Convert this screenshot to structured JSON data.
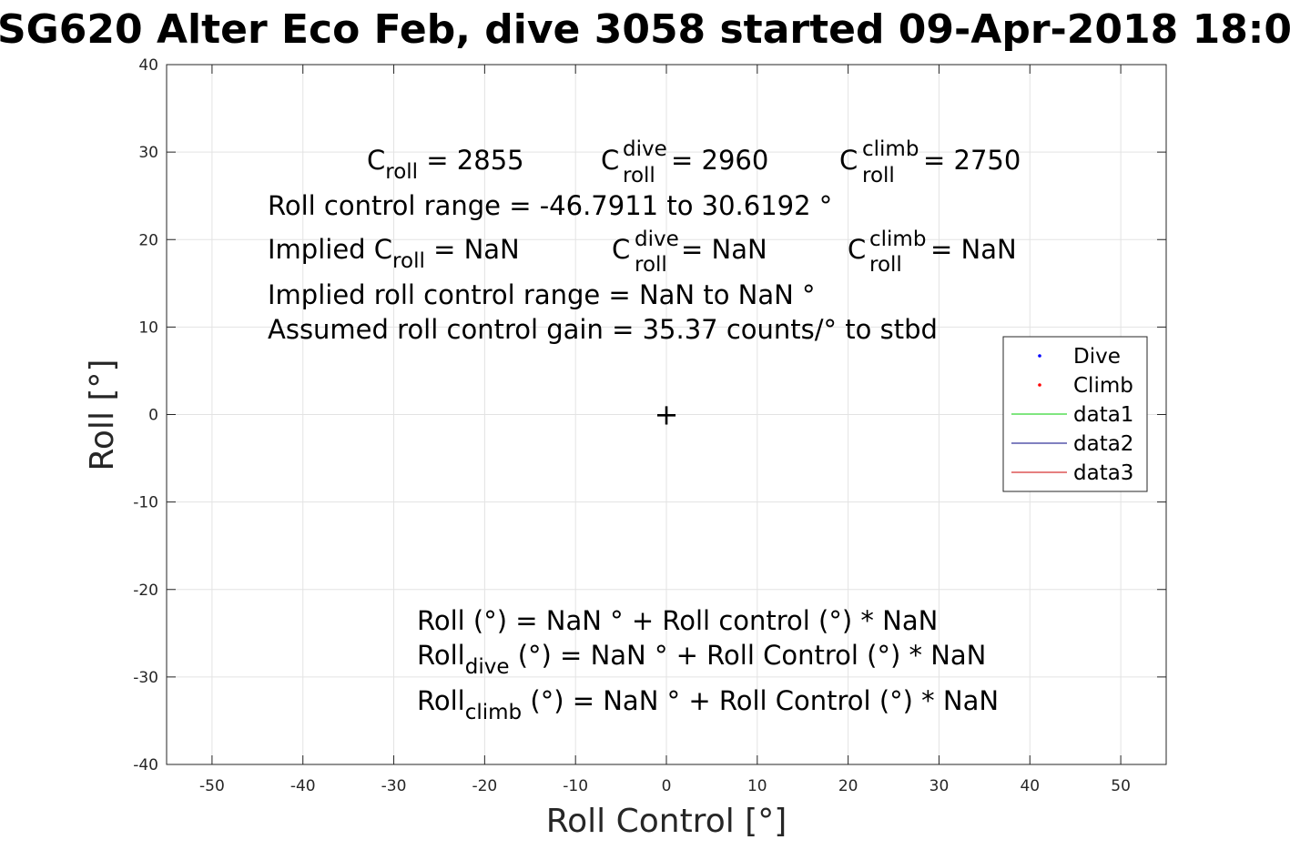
{
  "chart_data": {
    "type": "scatter",
    "title": "SG620 Alter Eco Feb, dive 3058 started 09-Apr-2018 18:0",
    "xlabel": "Roll Control [°]",
    "ylabel": "Roll [°]",
    "xlim": [
      -55,
      55
    ],
    "ylim": [
      -40,
      40
    ],
    "x_ticks": [
      -50,
      -40,
      -30,
      -20,
      -10,
      0,
      10,
      20,
      30,
      40,
      50
    ],
    "y_ticks": [
      -40,
      -30,
      -20,
      -10,
      0,
      10,
      20,
      30,
      40
    ],
    "grid": true,
    "legend_location": "east",
    "series": [
      {
        "name": "Dive",
        "style": "dot",
        "color": "#0000ff",
        "x": [],
        "y": []
      },
      {
        "name": "Climb",
        "style": "dot",
        "color": "#ff0000",
        "x": [],
        "y": []
      },
      {
        "name": "data1",
        "style": "line",
        "color": "#00cc00",
        "x": [],
        "y": []
      },
      {
        "name": "data2",
        "style": "line",
        "color": "#000080",
        "x": [],
        "y": []
      },
      {
        "name": "data3",
        "style": "line",
        "color": "#cc0000",
        "x": [],
        "y": []
      }
    ],
    "center_marker": {
      "x": 0,
      "y": 0,
      "symbol": "+"
    },
    "annotations": {
      "line1": {
        "c_base": "C",
        "c_sub": "roll",
        "c_eq": " = 2855",
        "cd_base": "C",
        "cd_sup": "dive",
        "cd_sub": "roll",
        "cd_eq": " = 2960",
        "cc_base": "C",
        "cc_sup": "climb",
        "cc_sub": "roll",
        "cc_eq": " = 2750"
      },
      "range": "Roll control range = -46.7911 to 30.6192 °",
      "implied_line": {
        "prefix": "Implied C",
        "c_sub": "roll",
        "c_eq": " =  NaN",
        "cd_base": "C",
        "cd_sup": "dive",
        "cd_sub": "roll",
        "cd_eq": " =  NaN",
        "cc_base": "C",
        "cc_sup": "climb",
        "cc_sub": "roll",
        "cc_eq": " =  NaN"
      },
      "implied_range": "Implied roll control range = NaN to NaN °",
      "gain": "Assumed roll control gain = 35.37 counts/° to stbd",
      "fit": "Roll (°) = NaN ° + Roll control (°) * NaN",
      "fit_dive": {
        "base": "Roll",
        "sub": "dive",
        "rest": " (°) = NaN ° + Roll Control (°) * NaN"
      },
      "fit_climb": {
        "base": "Roll",
        "sub": "climb",
        "rest": " (°) = NaN ° + Roll Control (°) * NaN"
      }
    }
  }
}
